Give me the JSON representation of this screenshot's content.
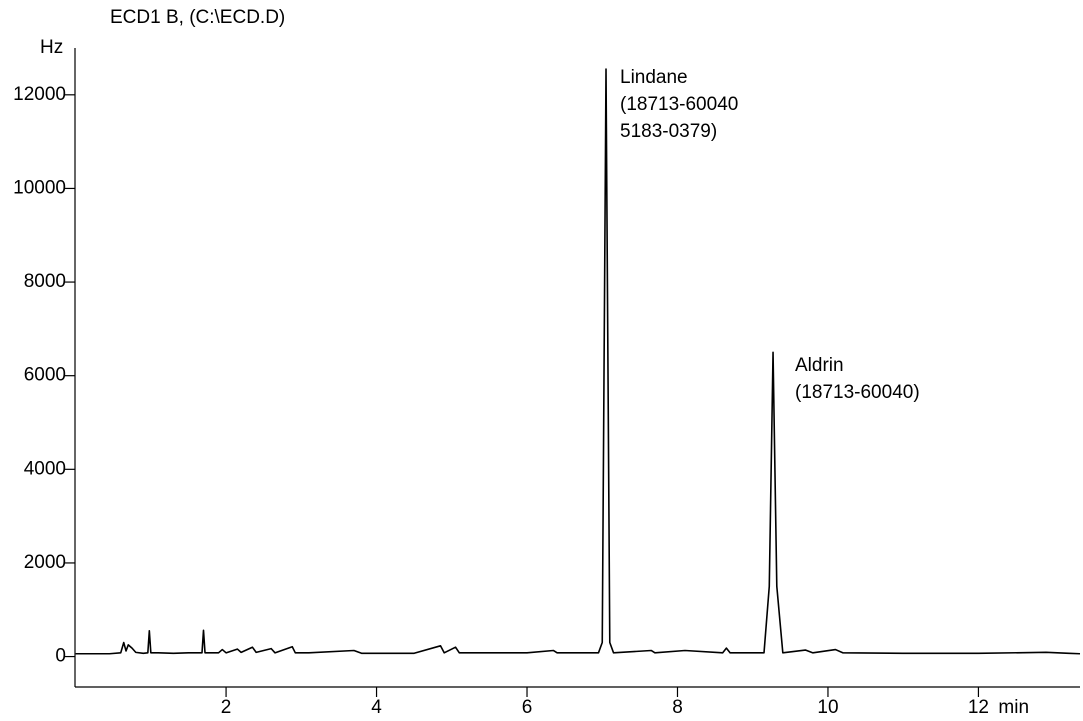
{
  "chart_data": {
    "type": "line",
    "title": "ECD1 B,  (C:\\ECD.D)",
    "y_label": "Hz",
    "x_label": "min",
    "xlim": [
      0,
      13.35
    ],
    "ylim": [
      -650,
      13000
    ],
    "xticks": [
      2,
      4,
      6,
      8,
      10,
      12
    ],
    "yticks": [
      0,
      2000,
      4000,
      6000,
      8000,
      10000,
      12000
    ],
    "series": [
      {
        "color": "#000000",
        "x": [
          0,
          0.45,
          0.6,
          0.64,
          0.67,
          0.7,
          0.75,
          0.8,
          0.9,
          0.96,
          0.98,
          1.0,
          1.1,
          1.3,
          1.5,
          1.68,
          1.7,
          1.72,
          1.9,
          1.95,
          2.0,
          2.15,
          2.2,
          2.35,
          2.4,
          2.6,
          2.65,
          2.88,
          2.92,
          3.1,
          3.7,
          3.8,
          4.5,
          4.85,
          4.9,
          5.05,
          5.1,
          6.0,
          6.35,
          6.4,
          6.95,
          7.0,
          7.05,
          7.1,
          7.15,
          7.65,
          7.7,
          8.1,
          8.6,
          8.65,
          8.7,
          9.15,
          9.22,
          9.27,
          9.32,
          9.4,
          9.7,
          9.8,
          10.1,
          10.2,
          11,
          12,
          12.9,
          13.2,
          13.35
        ],
        "values": [
          60,
          60,
          80,
          300,
          120,
          250,
          180,
          90,
          70,
          80,
          550,
          80,
          80,
          70,
          80,
          80,
          560,
          80,
          80,
          150,
          80,
          160,
          90,
          200,
          90,
          170,
          80,
          210,
          80,
          80,
          130,
          70,
          70,
          230,
          80,
          200,
          80,
          80,
          130,
          80,
          80,
          300,
          12550,
          300,
          80,
          130,
          80,
          130,
          80,
          180,
          80,
          80,
          1500,
          6500,
          1500,
          80,
          140,
          80,
          150,
          80,
          70,
          70,
          90,
          70,
          60
        ]
      }
    ],
    "annotations": [
      {
        "lines": [
          "Lindane",
          "(18713-60040",
          "5183-0379)"
        ]
      },
      {
        "lines": [
          "Aldrin",
          "(18713-60040)"
        ]
      }
    ]
  }
}
